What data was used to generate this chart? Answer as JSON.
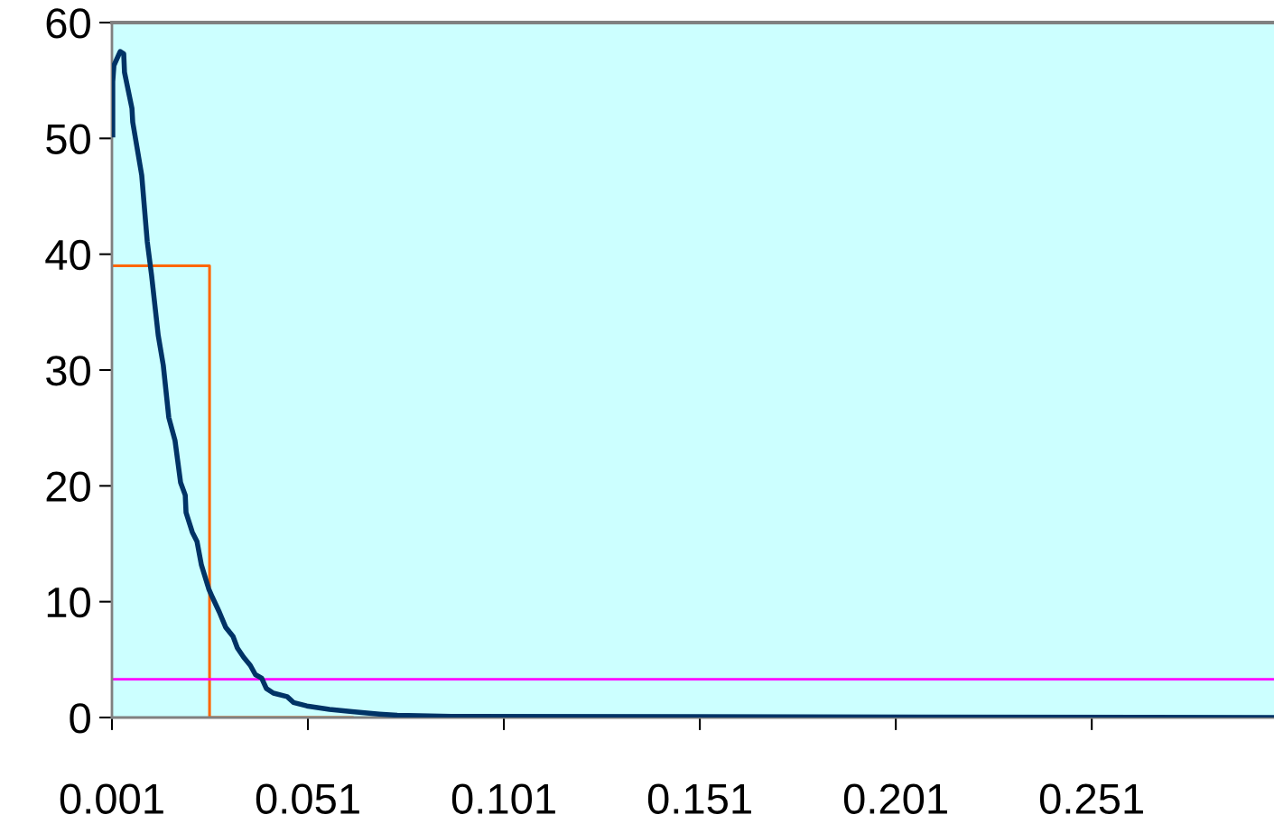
{
  "chart_data": {
    "type": "line",
    "xlim": [
      0.001,
      0.2975
    ],
    "xticks": [
      0.001,
      0.051,
      0.101,
      0.151,
      0.201,
      0.251
    ],
    "ylim": [
      0,
      60
    ],
    "yticks": [
      0,
      10,
      20,
      30,
      40,
      50,
      60
    ],
    "grid": false,
    "legend": false,
    "series": [
      {
        "color": "#003366",
        "x": [
          0.0012,
          0.0012,
          0.0015,
          0.0031,
          0.004,
          0.0042,
          0.0061,
          0.0063,
          0.0086,
          0.01,
          0.0111,
          0.0128,
          0.0141,
          0.0155,
          0.0171,
          0.0185,
          0.0197,
          0.0199,
          0.0215,
          0.0227,
          0.0238,
          0.0257,
          0.0266,
          0.0284,
          0.03,
          0.0319,
          0.033,
          0.0346,
          0.0363,
          0.0376,
          0.0392,
          0.0404,
          0.0422,
          0.0457,
          0.0473,
          0.0507,
          0.0565,
          0.0623,
          0.0692,
          0.0738,
          0.0876,
          0.2975
        ],
        "values": [
          50.3,
          54.9,
          56.3,
          57.5,
          57.3,
          55.7,
          52.6,
          51.4,
          46.8,
          41.1,
          38.2,
          33.0,
          30.4,
          25.9,
          23.9,
          20.3,
          19.2,
          17.7,
          16.0,
          15.2,
          13.2,
          11.1,
          10.4,
          9.1,
          7.8,
          7.0,
          6.0,
          5.2,
          4.5,
          3.7,
          3.4,
          2.5,
          2.1,
          1.8,
          1.3,
          1.0,
          0.7,
          0.5,
          0.3,
          0.2,
          0.1,
          0.0
        ]
      },
      {
        "type": "step",
        "color": "#ff6600",
        "x": [
          0.001,
          0.0259,
          0.0623
        ],
        "values": [
          39,
          0,
          0
        ]
      }
    ],
    "ref_lines": [
      {
        "axis": "y",
        "value": 3.3,
        "color": "#ff00ff"
      }
    ]
  }
}
